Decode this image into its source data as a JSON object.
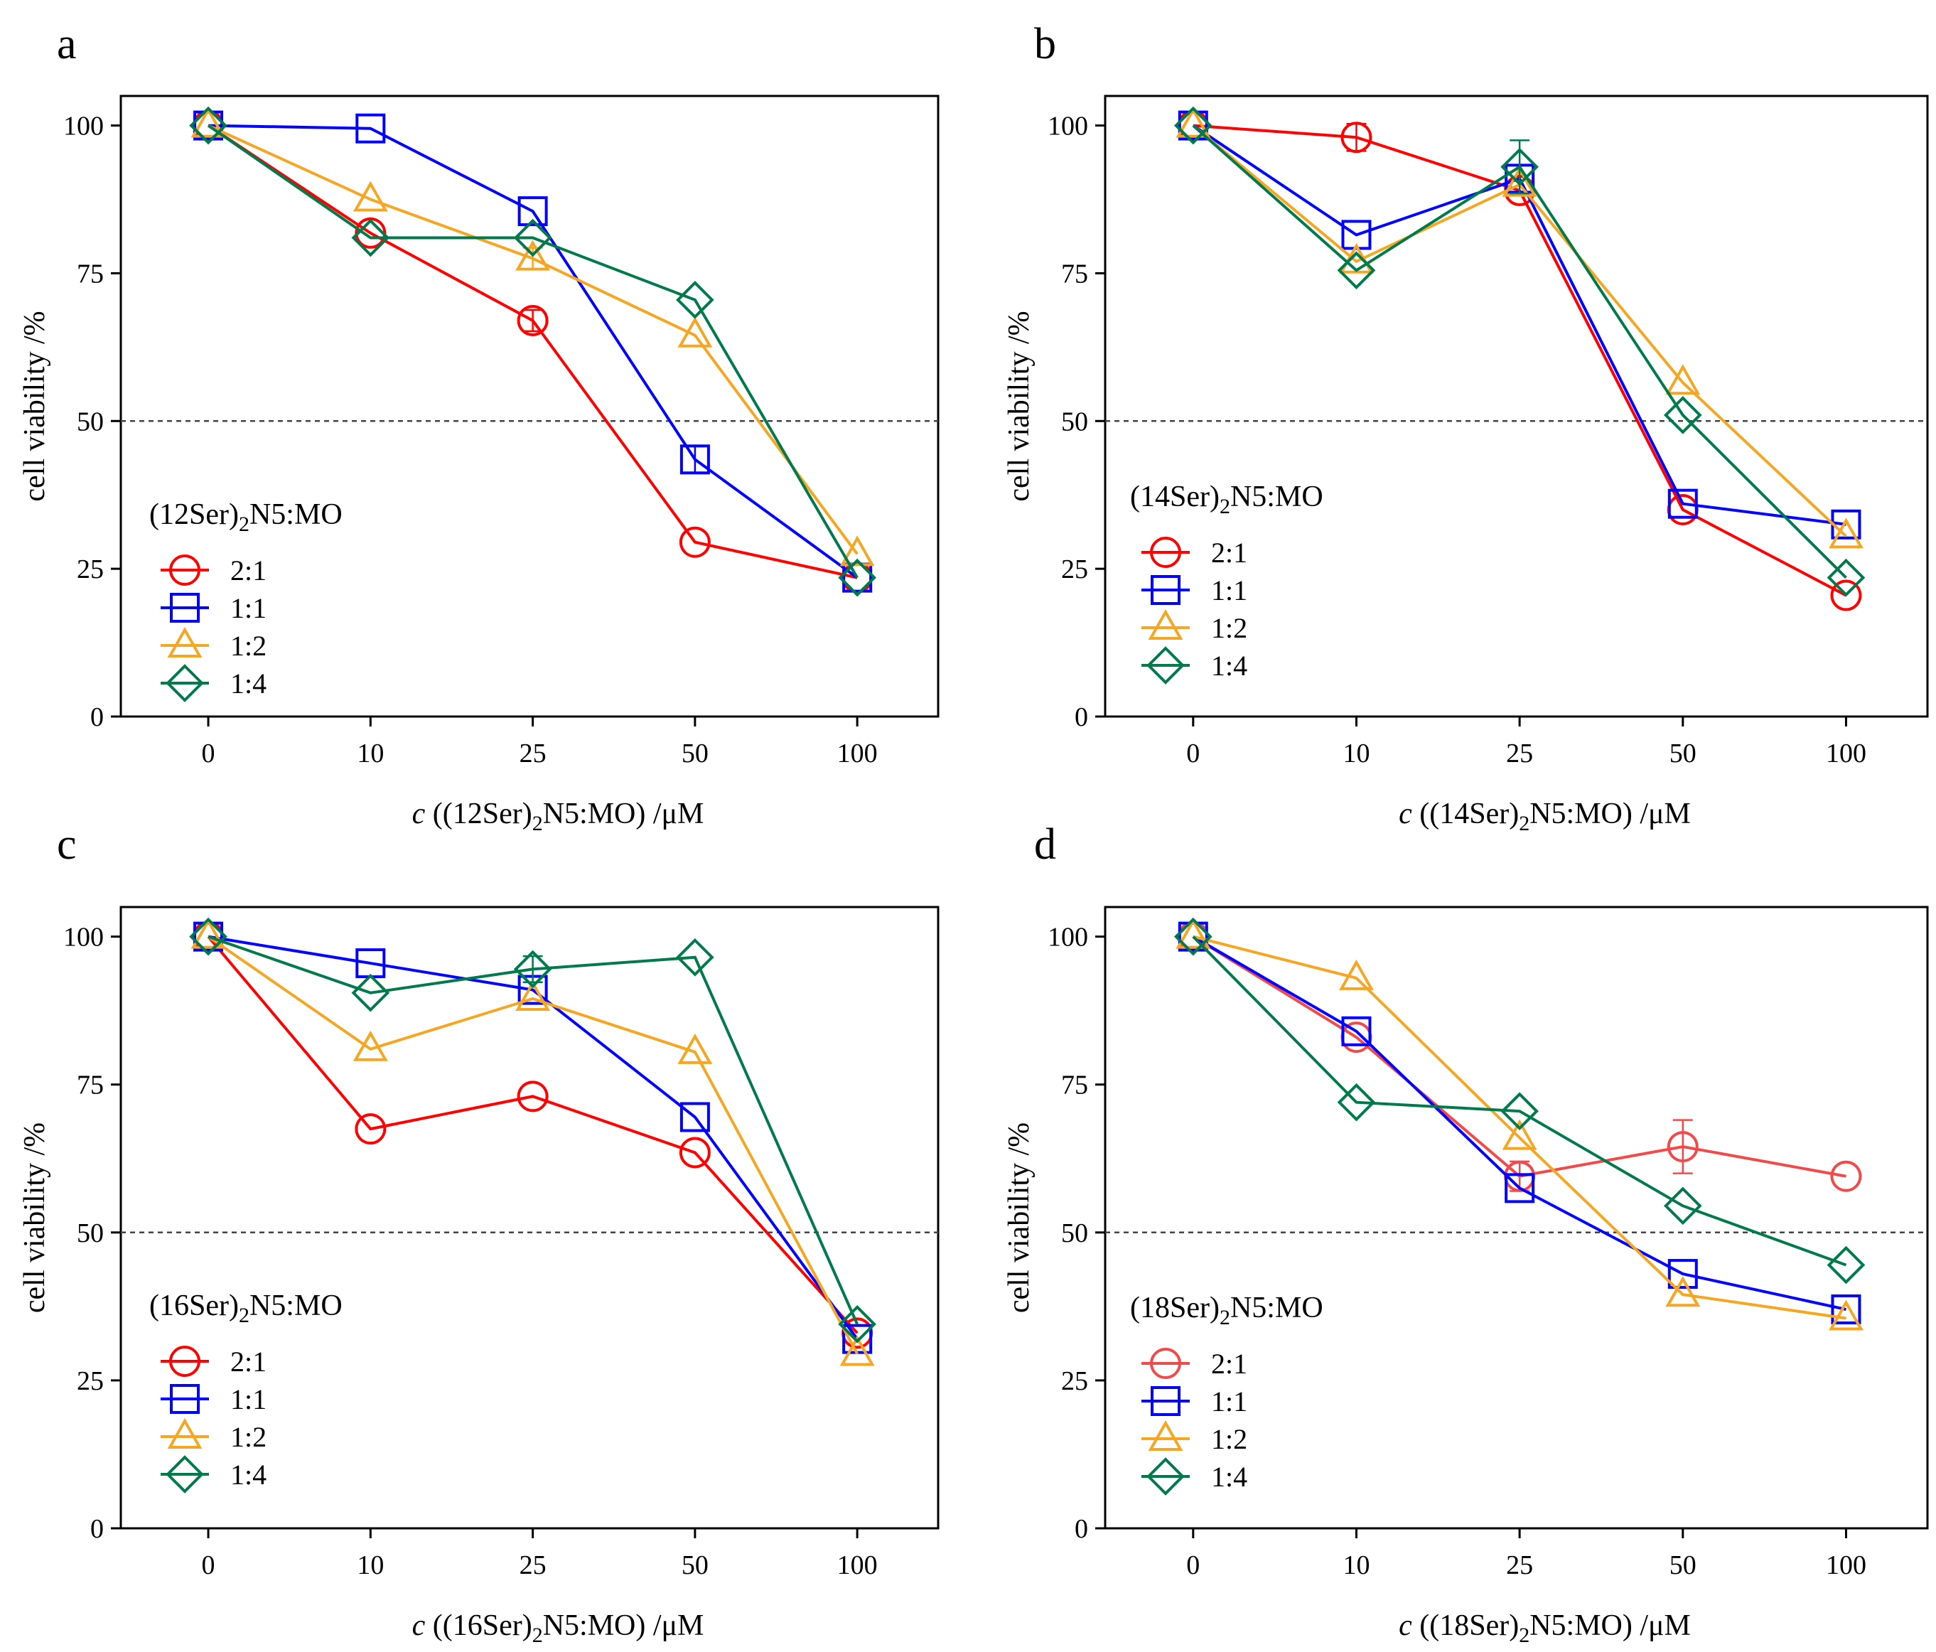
{
  "chart_data": [
    {
      "type": "line",
      "panel": "a",
      "categories": [
        "0",
        "10",
        "25",
        "50",
        "100"
      ],
      "ylim": [
        0,
        105
      ],
      "yticks": [
        0,
        25,
        50,
        75,
        100
      ],
      "yticklabels": [
        "0",
        "25",
        "50",
        "75",
        "100"
      ],
      "ylabel": "cell viability /%",
      "xlabel": {
        "italic": "c",
        "prefix": " ((",
        "sample": "12Ser",
        "sub": "2",
        "suffix": "N5:MO) /μM"
      },
      "legend_title": {
        "prefix": "(",
        "sample": "12Ser",
        "close": ")",
        "sub": "2",
        "rest": "N5:MO"
      },
      "reference_line": 50,
      "series": [
        {
          "name": "2:1",
          "marker": "circle",
          "color": "#ff0000",
          "values": [
            100,
            81.8,
            67,
            29.5,
            23.5
          ],
          "errors": [
            0,
            0,
            1.8,
            0,
            0
          ]
        },
        {
          "name": "1:1",
          "marker": "square",
          "color": "#0000ff",
          "values": [
            100,
            99.5,
            85.5,
            43.5,
            23.5
          ],
          "errors": [
            0,
            0,
            0,
            2.2,
            0
          ]
        },
        {
          "name": "1:2",
          "marker": "triangle",
          "color": "#f5a623",
          "values": [
            100,
            87.5,
            77.5,
            64.5,
            27.5
          ],
          "errors": [
            0,
            0,
            1.8,
            0,
            0
          ]
        },
        {
          "name": "1:4",
          "marker": "diamond",
          "color": "#007a4d",
          "values": [
            100,
            81,
            81,
            70.5,
            23.5
          ],
          "errors": [
            0,
            0,
            0,
            0,
            0
          ]
        }
      ]
    },
    {
      "type": "line",
      "panel": "b",
      "categories": [
        "0",
        "10",
        "25",
        "50",
        "100"
      ],
      "ylim": [
        0,
        105
      ],
      "yticks": [
        0,
        25,
        50,
        75,
        100
      ],
      "yticklabels": [
        "0",
        "25",
        "50",
        "75",
        "100"
      ],
      "ylabel": "cell viability /%",
      "xlabel": {
        "italic": "c",
        "prefix": " ((",
        "sample": "14Ser",
        "sub": "2",
        "suffix": "N5:MO) /μM"
      },
      "legend_title": {
        "prefix": "(",
        "sample": "14Ser",
        "close": ")",
        "sub": "2",
        "rest": "N5:MO"
      },
      "reference_line": 50,
      "series": [
        {
          "name": "2:1",
          "marker": "circle",
          "color": "#ff0000",
          "values": [
            100,
            98,
            89,
            35,
            20.5
          ],
          "errors": [
            0,
            2.3,
            0,
            0,
            0
          ]
        },
        {
          "name": "1:1",
          "marker": "square",
          "color": "#0000ff",
          "values": [
            100,
            81.5,
            91,
            36,
            32.5
          ],
          "errors": [
            0,
            0,
            0,
            0,
            0
          ]
        },
        {
          "name": "1:2",
          "marker": "triangle",
          "color": "#f5a623",
          "values": [
            100,
            77,
            90,
            56.5,
            30.5
          ],
          "errors": [
            0,
            0,
            0,
            0,
            0
          ]
        },
        {
          "name": "1:4",
          "marker": "diamond",
          "color": "#007a4d",
          "values": [
            100,
            75.5,
            93,
            51,
            23.5
          ],
          "errors": [
            0,
            0,
            4.5,
            0,
            0
          ]
        }
      ]
    },
    {
      "type": "line",
      "panel": "c",
      "categories": [
        "0",
        "10",
        "25",
        "50",
        "100"
      ],
      "ylim": [
        0,
        105
      ],
      "yticks": [
        0,
        25,
        50,
        75,
        100
      ],
      "yticklabels": [
        "0",
        "25",
        "50",
        "75",
        "100"
      ],
      "ylabel": "cell viability /%",
      "xlabel": {
        "italic": "c",
        "prefix": " ((",
        "sample": "16Ser",
        "sub": "2",
        "suffix": "N5:MO) /μM"
      },
      "legend_title": {
        "prefix": "(",
        "sample": "16Ser",
        "close": ")",
        "sub": "2",
        "rest": "N5:MO"
      },
      "reference_line": 50,
      "series": [
        {
          "name": "2:1",
          "marker": "circle",
          "color": "#ff0000",
          "values": [
            100,
            67.5,
            73,
            63.5,
            33
          ],
          "errors": [
            0,
            0,
            0,
            0,
            0
          ]
        },
        {
          "name": "1:1",
          "marker": "square",
          "color": "#0000ff",
          "values": [
            100,
            95.5,
            91,
            69.5,
            32
          ],
          "errors": [
            0,
            0,
            0,
            0,
            0
          ]
        },
        {
          "name": "1:2",
          "marker": "triangle",
          "color": "#f5a623",
          "values": [
            100,
            81,
            89.5,
            80.5,
            29.5
          ],
          "errors": [
            0,
            0,
            0,
            0,
            0
          ]
        },
        {
          "name": "1:4",
          "marker": "diamond",
          "color": "#007a4d",
          "values": [
            100,
            90.5,
            94.5,
            96.5,
            34.5
          ],
          "errors": [
            0,
            0,
            2.2,
            0,
            0
          ]
        }
      ]
    },
    {
      "type": "line",
      "panel": "d",
      "categories": [
        "0",
        "10",
        "25",
        "50",
        "100"
      ],
      "ylim": [
        0,
        105
      ],
      "yticks": [
        0,
        25,
        50,
        75,
        100
      ],
      "yticklabels": [
        "0",
        "25",
        "50",
        "75",
        "100"
      ],
      "ylabel": "cell viability /%",
      "xlabel": {
        "italic": "c",
        "prefix": " ((",
        "sample": "18Ser",
        "sub": "2",
        "suffix": "N5:MO) /μM"
      },
      "legend_title": {
        "prefix": "(",
        "sample": "18Ser",
        "close": ")",
        "sub": "2",
        "rest": "N5:MO"
      },
      "reference_line": 50,
      "series": [
        {
          "name": "2:1",
          "marker": "circle",
          "color": "#f24a4a",
          "values": [
            100,
            83,
            59.5,
            64.5,
            59.5
          ],
          "errors": [
            0,
            0,
            2.5,
            4.5,
            0
          ]
        },
        {
          "name": "1:1",
          "marker": "square",
          "color": "#0000ff",
          "values": [
            100,
            84,
            57.5,
            43,
            37
          ],
          "errors": [
            0,
            0,
            0,
            0,
            0
          ]
        },
        {
          "name": "1:2",
          "marker": "triangle",
          "color": "#f5a623",
          "values": [
            100,
            93,
            66,
            39.5,
            35.5
          ],
          "errors": [
            0,
            0,
            0,
            0,
            0
          ]
        },
        {
          "name": "1:4",
          "marker": "diamond",
          "color": "#007a4d",
          "values": [
            100,
            72,
            70.5,
            54.5,
            44.5
          ],
          "errors": [
            0,
            0,
            0,
            0,
            0
          ]
        }
      ]
    }
  ]
}
